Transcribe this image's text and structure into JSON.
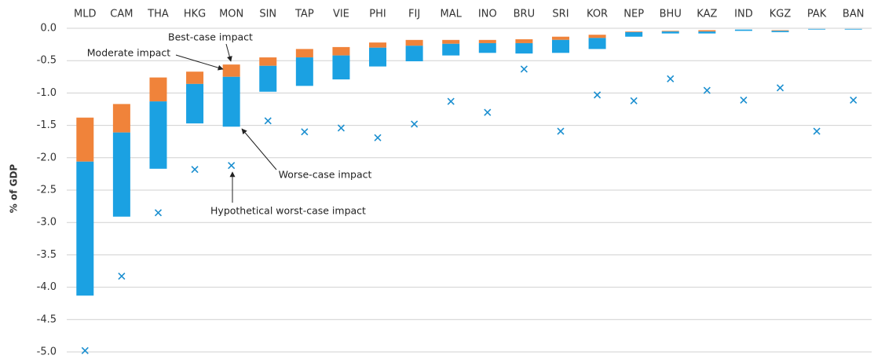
{
  "chart_data": {
    "type": "floating-bar",
    "y_label": "% of GDP",
    "categories": [
      "MLD",
      "CAM",
      "THA",
      "HKG",
      "MON",
      "SIN",
      "TAP",
      "VIE",
      "PHI",
      "FIJ",
      "MAL",
      "INO",
      "BRU",
      "SRI",
      "KOR",
      "NEP",
      "BHU",
      "KAZ",
      "IND",
      "KGZ",
      "PAK",
      "BAN"
    ],
    "series": [
      {
        "name": "Best-case impact",
        "color": "#f0833a",
        "values": [
          -1.38,
          -1.17,
          -0.76,
          -0.67,
          -0.56,
          -0.45,
          -0.32,
          -0.29,
          -0.22,
          -0.18,
          -0.18,
          -0.18,
          -0.17,
          -0.13,
          -0.1,
          -0.05,
          -0.04,
          -0.03,
          -0.02,
          -0.03,
          -0.01,
          -0.01
        ]
      },
      {
        "name": "Moderate impact",
        "color": "#1ba1e2",
        "values": [
          -2.06,
          -1.61,
          -1.13,
          -0.86,
          -0.75,
          -0.58,
          -0.45,
          -0.42,
          -0.3,
          -0.27,
          -0.24,
          -0.23,
          -0.23,
          -0.18,
          -0.15,
          -0.06,
          -0.05,
          -0.05,
          -0.02,
          -0.04,
          -0.01,
          -0.01
        ]
      },
      {
        "name": "Worse-case impact",
        "color": "#1ba1e2",
        "values": [
          -4.13,
          -2.91,
          -2.17,
          -1.47,
          -1.52,
          -0.98,
          -0.89,
          -0.79,
          -0.59,
          -0.51,
          -0.42,
          -0.38,
          -0.39,
          -0.38,
          -0.32,
          -0.13,
          -0.08,
          -0.08,
          -0.04,
          -0.06,
          -0.02,
          -0.02
        ]
      },
      {
        "name": "Hypothetical worst-case impact",
        "color": "#1b8fd0",
        "values": [
          -4.98,
          -3.83,
          -2.85,
          -2.18,
          -2.12,
          -1.43,
          -1.6,
          -1.54,
          -1.69,
          -1.48,
          -1.13,
          -1.3,
          -0.63,
          -1.59,
          -1.03,
          -1.12,
          -0.78,
          -0.96,
          -1.11,
          -0.92,
          -1.59,
          -1.11
        ]
      }
    ],
    "ylim": [
      -5.0,
      0.0
    ],
    "yticks": [
      {
        "value": 0,
        "label": "0.0"
      },
      -0.5,
      {
        "value": -1,
        "label": "-1.0"
      },
      -1.5,
      {
        "value": -2,
        "label": "-2.0"
      },
      -2.5,
      {
        "value": -3,
        "label": "-3.0"
      },
      -3.5,
      {
        "value": -4,
        "label": "-4.0"
      },
      -4.5,
      {
        "value": -5,
        "label": "-5.0"
      }
    ],
    "grid": true
  }
}
